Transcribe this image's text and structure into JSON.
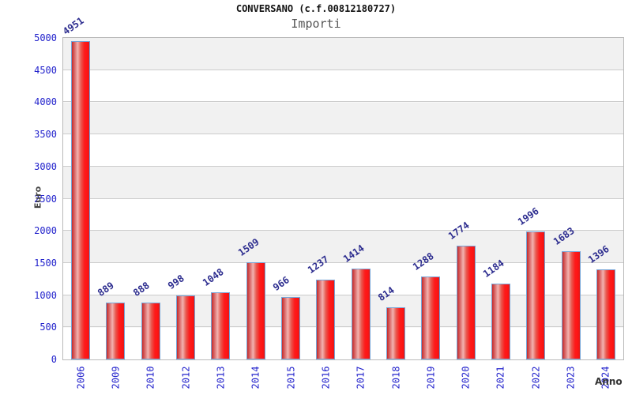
{
  "header": {
    "title": "CONVERSANO (c.f.00812180727)",
    "subtitle": "Importi"
  },
  "chart_data": {
    "type": "bar",
    "title": "CONVERSANO (c.f.00812180727)",
    "subtitle": "Importi",
    "xlabel": "Anno",
    "ylabel": "Euro",
    "categories": [
      "2006",
      "2009",
      "2010",
      "2012",
      "2013",
      "2014",
      "2015",
      "2016",
      "2017",
      "2018",
      "2019",
      "2020",
      "2021",
      "2022",
      "2023",
      "2024"
    ],
    "values": [
      4951,
      889,
      888,
      998,
      1048,
      1509,
      966,
      1237,
      1414,
      814,
      1288,
      1774,
      1184,
      1996,
      1683,
      1396
    ],
    "ylim": [
      0,
      5000
    ],
    "yticks": [
      0,
      500,
      1000,
      1500,
      2000,
      2500,
      3000,
      3500,
      4000,
      4500,
      5000
    ],
    "grid": true,
    "legend_position": "none",
    "bands": "alternating gray/white every 500, gray band at top",
    "colors": {
      "bar_fill": "#ee2222",
      "bar_highlight": "#f2b2b0",
      "bar_border": "#76a5d8",
      "value_label": "#2d2d8f",
      "tick_label": "#2323cc",
      "axis_title": "#444444",
      "band_gray": "#f1f1f1",
      "gridline": "#cccccc",
      "plot_border": "#b9b9b9",
      "title": "#111111",
      "subtitle": "#555555"
    }
  }
}
